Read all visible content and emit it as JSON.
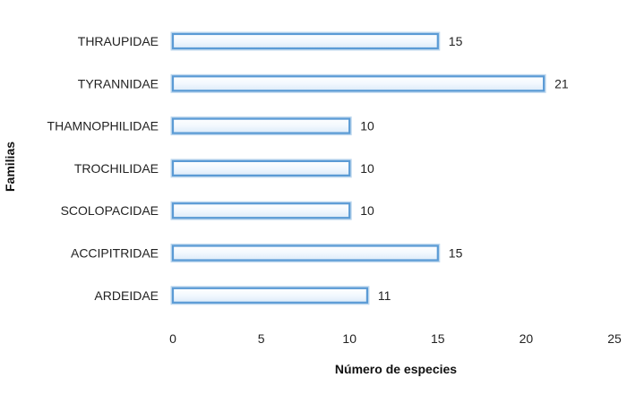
{
  "chart_data": {
    "type": "bar",
    "orientation": "horizontal",
    "categories": [
      "THRAUPIDAE",
      "TYRANNIDAE",
      "THAMNOPHILIDAE",
      "TROCHILIDAE",
      "SCOLOPACIDAE",
      "ACCIPITRIDAE",
      "ARDEIDAE"
    ],
    "values": [
      15,
      21,
      10,
      10,
      10,
      15,
      11
    ],
    "title": "",
    "xlabel": "Número de especies",
    "ylabel": "Familias",
    "xlim": [
      0,
      25
    ],
    "xticks": [
      0,
      5,
      10,
      15,
      20,
      25
    ],
    "grid": false,
    "legend": "none",
    "data_labels": true,
    "colors": {
      "bar_fill": "#eaf3fc",
      "bar_edge": "#5b9bd5",
      "bar_glow": "#bdd7ee"
    }
  }
}
